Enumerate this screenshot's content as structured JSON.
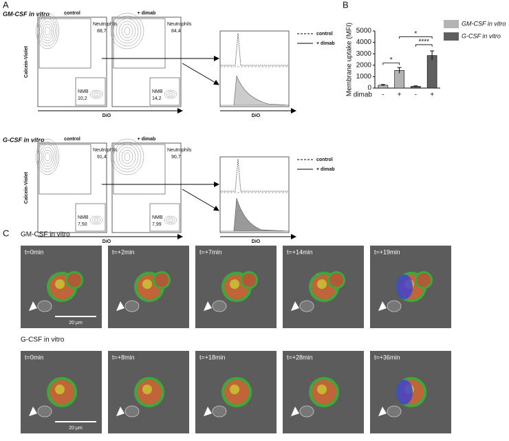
{
  "panel_labels": [
    "A",
    "B",
    "C"
  ],
  "panel_a": {
    "y_label": "Calcein-Violet",
    "x_label": "DiO",
    "legend": [
      "control",
      "+ dimab"
    ],
    "rows": [
      {
        "title": "GM-CSF in vitro",
        "plots": [
          {
            "title": "control",
            "gate1": "Neutrophils",
            "value1": "88,7",
            "gate2": "NMB",
            "value2": "10,2"
          },
          {
            "title": "+ dimab",
            "gate1": "Neutrophils",
            "value1": "84,4",
            "gate2": "NMB",
            "value2": "14,2"
          }
        ]
      },
      {
        "title": "G-CSF in vitro",
        "plots": [
          {
            "title": "control",
            "gate1": "Neutrophils",
            "value1": "91,4",
            "gate2": "NMB",
            "value2": "7,50"
          },
          {
            "title": "+ dimab",
            "gate1": "Neutrophils",
            "value1": "90,7",
            "gate2": "NMB",
            "value2": "7,99"
          }
        ]
      }
    ]
  },
  "chart_data": {
    "type": "bar",
    "y_label": "Membrane uptake (MFI)",
    "x_row_label": "dimab",
    "categories": [
      "-",
      "+",
      "-",
      "+"
    ],
    "series": [
      {
        "name": "GM-CSF in vitro",
        "color": "#b3b3b3",
        "values": [
          250,
          1550,
          null,
          null
        ],
        "errors": [
          60,
          250,
          null,
          null
        ]
      },
      {
        "name": "G-CSF in vitro",
        "color": "#5f5f5f",
        "values": [
          null,
          null,
          150,
          2850
        ],
        "errors": [
          null,
          null,
          40,
          400
        ]
      }
    ],
    "ylim": [
      0,
      5000
    ],
    "yticks": [
      0,
      1000,
      2000,
      3000,
      4000,
      5000
    ],
    "annotations": [
      "*",
      "*",
      "****"
    ]
  },
  "panel_c": {
    "scale_bar": "20 µm",
    "rows": [
      {
        "title": "GM-CSF in vitro",
        "frames": [
          "t=0min",
          "t=+2min",
          "t=+7min",
          "t=+14min",
          "t=+19min"
        ]
      },
      {
        "title": "G-CSF in vitro",
        "frames": [
          "t=0min",
          "t=+8min",
          "t=+18min",
          "t=+28min",
          "t=+36min"
        ]
      }
    ]
  }
}
